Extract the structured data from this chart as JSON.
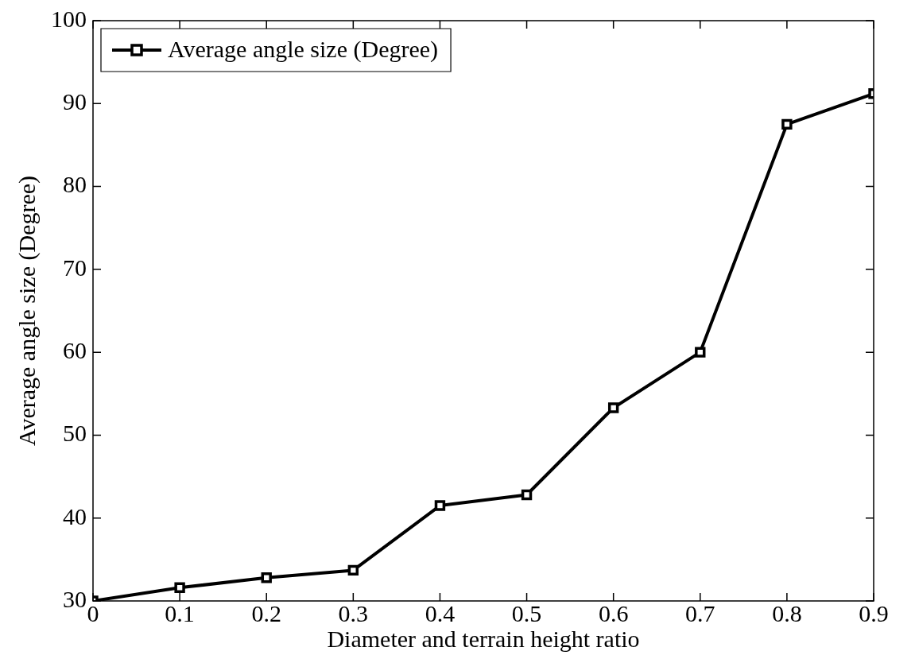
{
  "chart_data": {
    "type": "line",
    "xlabel": "Diameter and terrain height ratio",
    "ylabel": "Average angle size (Degree)",
    "x": [
      0,
      0.1,
      0.2,
      0.3,
      0.4,
      0.5,
      0.6,
      0.7,
      0.8,
      0.9
    ],
    "series": [
      {
        "name": "Average angle size (Degree)",
        "color": "#000000",
        "values": [
          30,
          31.6,
          32.8,
          33.7,
          41.5,
          42.8,
          53.3,
          60,
          87.5,
          91.2
        ]
      }
    ],
    "xlim": [
      0,
      0.9
    ],
    "xticks": [
      0,
      0.1,
      0.2,
      0.3,
      0.4,
      0.5,
      0.6,
      0.7,
      0.8,
      0.9
    ],
    "ylim": [
      30,
      100
    ],
    "yticks": [
      30,
      40,
      50,
      60,
      70,
      80,
      90,
      100
    ],
    "grid": false,
    "legend": "top left",
    "marker": "square",
    "line_style": "solid"
  }
}
